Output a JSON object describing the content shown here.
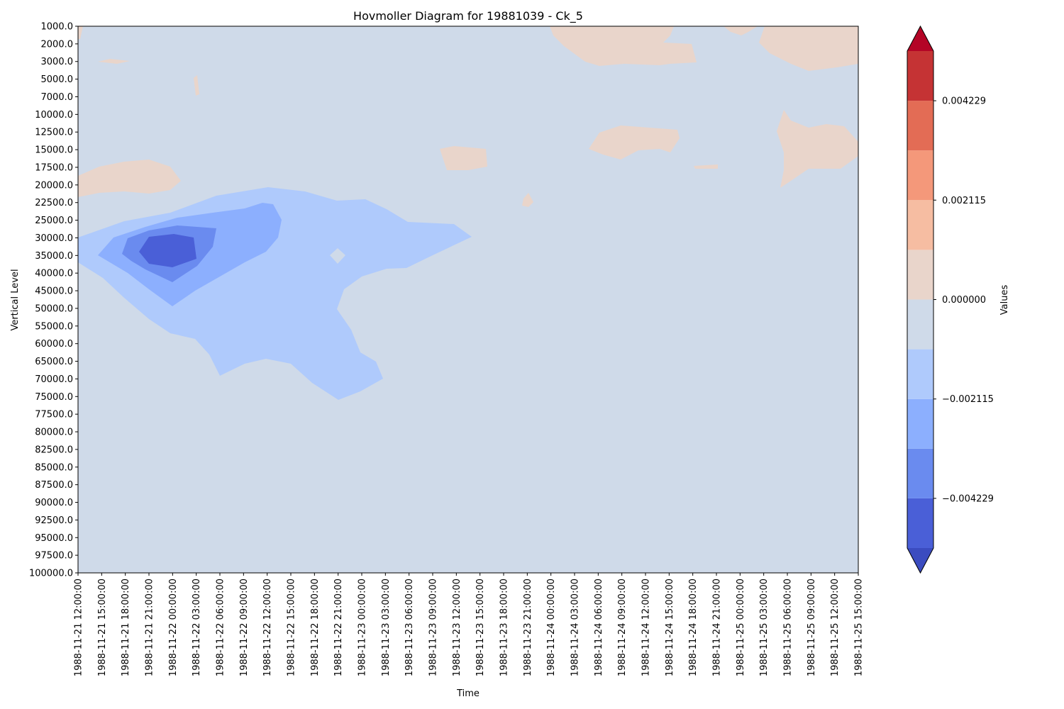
{
  "chart_data": {
    "type": "contourf",
    "title": "Hovmoller Diagram for 19881039 - Ck_5",
    "xlabel": "Time",
    "ylabel": "Vertical Level",
    "y_inverted": true,
    "x": [
      "1988-11-21 12:00:00",
      "1988-11-21 15:00:00",
      "1988-11-21 18:00:00",
      "1988-11-21 21:00:00",
      "1988-11-22 00:00:00",
      "1988-11-22 03:00:00",
      "1988-11-22 06:00:00",
      "1988-11-22 09:00:00",
      "1988-11-22 12:00:00",
      "1988-11-22 15:00:00",
      "1988-11-22 18:00:00",
      "1988-11-22 21:00:00",
      "1988-11-23 00:00:00",
      "1988-11-23 03:00:00",
      "1988-11-23 06:00:00",
      "1988-11-23 09:00:00",
      "1988-11-23 12:00:00",
      "1988-11-23 15:00:00",
      "1988-11-23 18:00:00",
      "1988-11-23 21:00:00",
      "1988-11-24 00:00:00",
      "1988-11-24 03:00:00",
      "1988-11-24 06:00:00",
      "1988-11-24 09:00:00",
      "1988-11-24 12:00:00",
      "1988-11-24 15:00:00",
      "1988-11-24 18:00:00",
      "1988-11-24 21:00:00",
      "1988-11-25 00:00:00",
      "1988-11-25 03:00:00",
      "1988-11-25 06:00:00",
      "1988-11-25 09:00:00",
      "1988-11-25 12:00:00",
      "1988-11-25 15:00:00"
    ],
    "y_levels": [
      "1000.0",
      "2000.0",
      "3000.0",
      "5000.0",
      "7000.0",
      "10000.0",
      "12500.0",
      "15000.0",
      "17500.0",
      "20000.0",
      "22500.0",
      "25000.0",
      "30000.0",
      "35000.0",
      "40000.0",
      "45000.0",
      "50000.0",
      "55000.0",
      "60000.0",
      "65000.0",
      "70000.0",
      "75000.0",
      "77500.0",
      "80000.0",
      "82500.0",
      "85000.0",
      "87500.0",
      "90000.0",
      "92500.0",
      "95000.0",
      "97500.0",
      "100000.0"
    ],
    "colorbar": {
      "label": "Values",
      "extend": "both",
      "ticks": [
        "0.004229",
        "0.002115",
        "0.000000",
        "−0.002115",
        "−0.004229"
      ],
      "levels": [
        -0.005286,
        -0.004229,
        -0.003172,
        -0.002115,
        -0.001057,
        0.0,
        0.001057,
        0.002115,
        0.003172,
        0.004229,
        0.005286
      ],
      "colors_bottom_to_top": [
        "#3b4cc0",
        "#4a5fd7",
        "#6a8bef",
        "#8caffe",
        "#afcafc",
        "#cfdae9",
        "#e9d5cb",
        "#f6bda2",
        "#f4987a",
        "#e36c55",
        "#c53334",
        "#b40426"
      ]
    },
    "background_value_range": [
      -0.001057,
      0.0
    ],
    "features": [
      {
        "sign": "negative",
        "peak_value": -0.0048,
        "time_range": [
          "1988-11-21 12:00:00",
          "1988-11-23 15:00:00"
        ],
        "level_range": [
          "20000.0",
          "75000.0"
        ],
        "peak_time": "1988-11-22 00:00:00",
        "peak_level": "35000.0"
      },
      {
        "sign": "positive",
        "peak_value": 0.0008,
        "time_range": [
          "1988-11-23 21:00:00",
          "1988-11-25 15:00:00"
        ],
        "level_range": [
          "1000.0",
          "20000.0"
        ]
      }
    ]
  }
}
